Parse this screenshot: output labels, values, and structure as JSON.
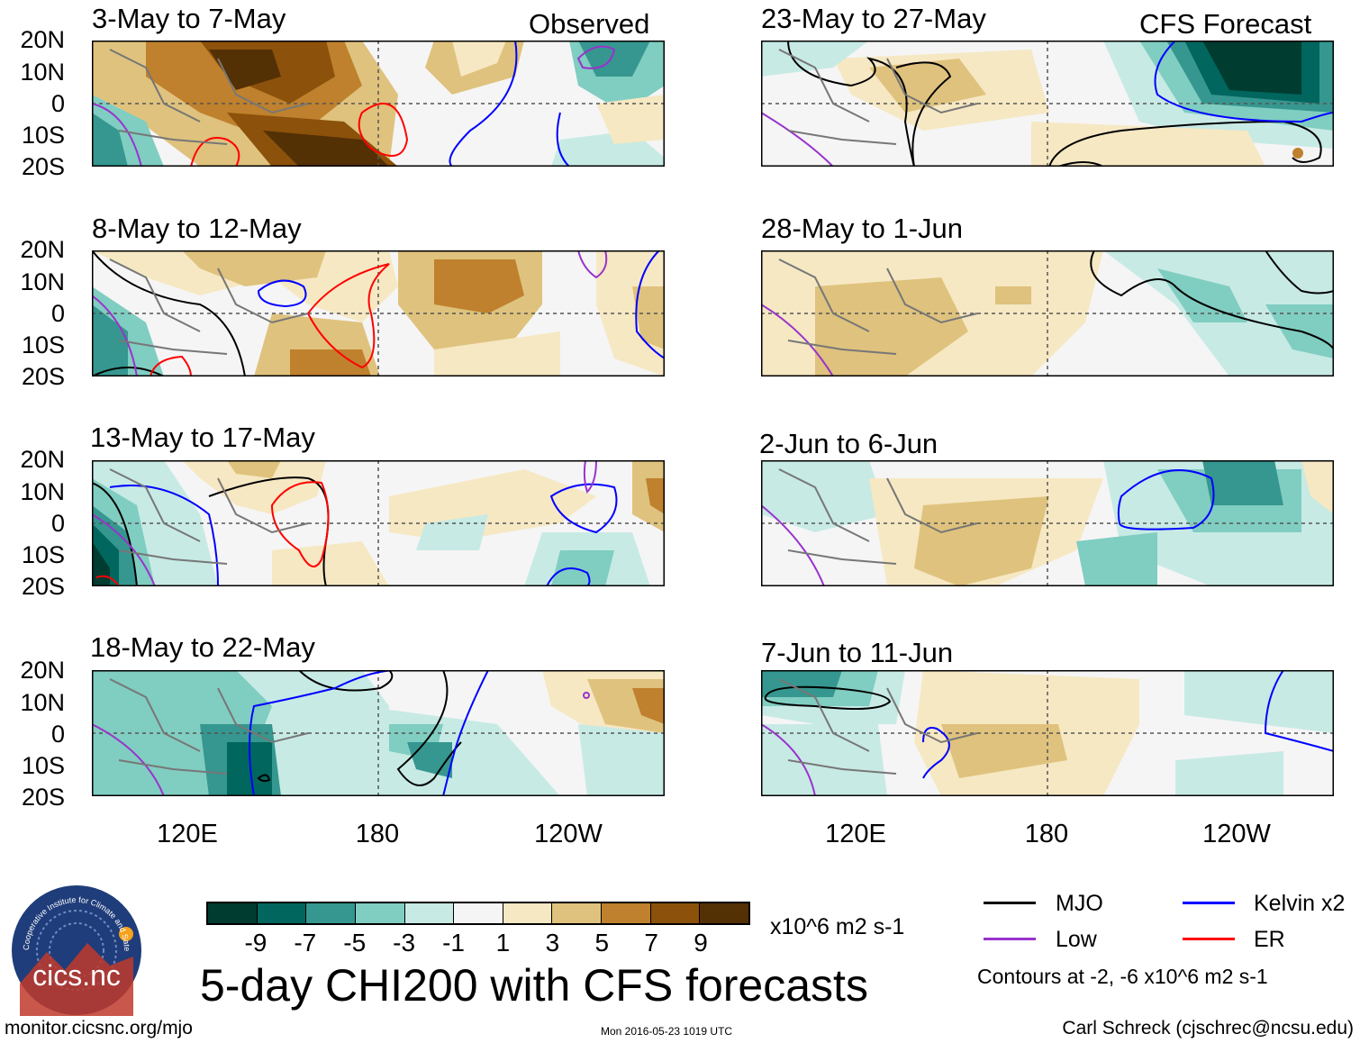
{
  "header": {
    "observed_label": "Observed",
    "forecast_label": "CFS Forecast"
  },
  "panels_left": [
    {
      "title": "3-May to 7-May"
    },
    {
      "title": "8-May to 12-May"
    },
    {
      "title": "13-May to 17-May"
    },
    {
      "title": "18-May to 22-May"
    }
  ],
  "panels_right": [
    {
      "title": "23-May to 27-May"
    },
    {
      "title": "28-May to 1-Jun"
    },
    {
      "title": "2-Jun to 6-Jun"
    },
    {
      "title": "7-Jun to 11-Jun"
    }
  ],
  "axes": {
    "lat_labels": [
      "20N",
      "10N",
      "0",
      "10S",
      "20S"
    ],
    "lon_labels": [
      "120E",
      "180",
      "120W"
    ]
  },
  "colorbar": {
    "colors": [
      "#003c30",
      "#01665e",
      "#35978f",
      "#80cdc1",
      "#c7eae5",
      "#f5f5f5",
      "#f6e8c3",
      "#dfc27d",
      "#bf812d",
      "#8c510a",
      "#543005"
    ],
    "tick_labels": [
      "-9",
      "-7",
      "-5",
      "-3",
      "-1",
      "1",
      "3",
      "5",
      "7",
      "9"
    ],
    "units": "x10^6 m2 s-1"
  },
  "title": "5-day CHI200 with CFS forecasts",
  "legend": {
    "items": [
      {
        "label": "MJO",
        "color": "#000000"
      },
      {
        "label": "Kelvin x2",
        "color": "#0000ff"
      },
      {
        "label": "Low",
        "color": "#9933cc"
      },
      {
        "label": "ER",
        "color": "#ff0000"
      }
    ],
    "contour_note": "Contours at -2, -6 x10^6 m2 s-1"
  },
  "logo_text": {
    "arc": "Cooperative Institute for Climate and Satellites",
    "name": "cics.nc"
  },
  "footer": {
    "website": "monitor.cicsnc.org/mjo",
    "timestamp": "Mon 2016-05-23 1019 UTC",
    "author": "Carl Schreck (cjschrec@ncsu.edu)"
  }
}
